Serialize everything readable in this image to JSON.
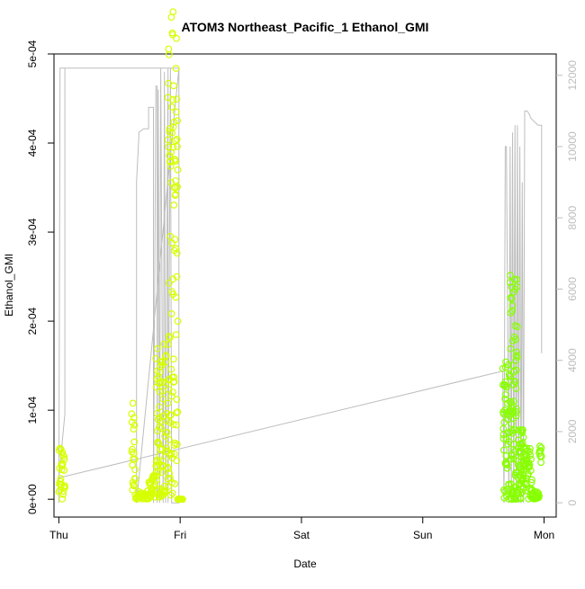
{
  "chart_data": {
    "type": "scatter",
    "title": "ATOM3 Northeast_Pacific_1 Ethanol_GMI",
    "xlabel": "Date",
    "ylabel": "Ethanol_GMI",
    "x_ticks": [
      "Thu",
      "Fri",
      "Sat",
      "Sun",
      "Mon"
    ],
    "x_range_days": [
      -0.04,
      4.1
    ],
    "y_left": {
      "range": [
        -2e-05,
        0.0005
      ],
      "ticks": [
        0,
        0.0001,
        0.0002,
        0.0003,
        0.0004,
        0.0005
      ],
      "tick_labels": [
        "0e+00",
        "1e-04",
        "2e-04",
        "3e-04",
        "4e-04",
        "5e-04"
      ]
    },
    "y_right": {
      "range": [
        -400,
        12600
      ],
      "ticks": [
        0,
        2000,
        4000,
        6000,
        8000,
        10000,
        12000
      ],
      "tick_labels": [
        "0",
        "2000",
        "4000",
        "6000",
        "8000",
        "10000",
        "12000"
      ],
      "color": "#bdbdbd"
    },
    "grid": false,
    "legend": "none",
    "colors": {
      "points_early": "#d6ff00",
      "points_late": "#88ff00",
      "altitude_line": "#bdbdbd",
      "axis": "#000000"
    },
    "series": [
      {
        "kind": "points",
        "axis": "left",
        "color": "#d6ff00",
        "bursts": [
          {
            "x_start": 0.0,
            "x_end": 0.05,
            "y_max": 6e-05,
            "y_min": 0.0,
            "n": 26,
            "seed": 3
          },
          {
            "x_start": 0.6,
            "x_end": 0.63,
            "y_max": 0.00011,
            "y_min": 1e-05,
            "n": 20,
            "seed": 5
          },
          {
            "x_start": 0.63,
            "x_end": 0.74,
            "y_max": 1e-05,
            "y_min": 0.0,
            "n": 24,
            "seed": 7
          },
          {
            "x_start": 0.74,
            "x_end": 0.8,
            "y_max": 3e-05,
            "y_min": 0.0,
            "n": 22,
            "seed": 9
          },
          {
            "x_start": 0.8,
            "x_end": 0.84,
            "y_max": 0.00018,
            "y_min": 0.0,
            "n": 36,
            "seed": 11
          },
          {
            "x_start": 0.84,
            "x_end": 0.9,
            "y_max": 0.00018,
            "y_min": 0.0,
            "n": 40,
            "seed": 13
          },
          {
            "x_start": 0.9,
            "x_end": 0.98,
            "y_max": 0.00045,
            "y_min": 0.0,
            "n": 70,
            "seed": 17
          },
          {
            "x_start": 0.9,
            "x_end": 0.98,
            "y_max": 0.00055,
            "y_min": 0.00035,
            "n": 30,
            "seed": 19
          },
          {
            "x_start": 0.98,
            "x_end": 1.02,
            "y_max": 0.0,
            "y_min": 0.0,
            "n": 8,
            "seed": 21
          }
        ]
      },
      {
        "kind": "points",
        "axis": "left",
        "color": "#88ff00",
        "bursts": [
          {
            "x_start": 3.66,
            "x_end": 3.72,
            "y_max": 0.00016,
            "y_min": 0.0,
            "n": 50,
            "seed": 23
          },
          {
            "x_start": 3.72,
            "x_end": 3.78,
            "y_max": 0.00026,
            "y_min": 0.0,
            "n": 70,
            "seed": 29
          },
          {
            "x_start": 3.78,
            "x_end": 3.83,
            "y_max": 8e-05,
            "y_min": 0.0,
            "n": 46,
            "seed": 31
          },
          {
            "x_start": 3.83,
            "x_end": 3.9,
            "y_max": 6e-05,
            "y_min": 0.0,
            "n": 40,
            "seed": 37
          },
          {
            "x_start": 3.9,
            "x_end": 3.96,
            "y_max": 1e-05,
            "y_min": 0.0,
            "n": 18,
            "seed": 41
          },
          {
            "x_start": 3.96,
            "x_end": 3.98,
            "y_max": 6e-05,
            "y_min": 4e-05,
            "n": 8,
            "seed": 43
          }
        ]
      },
      {
        "kind": "line",
        "axis": "right",
        "color": "#bdbdbd",
        "x": [
          0.0,
          0.01,
          0.02,
          0.03,
          0.05,
          0.9,
          0.96,
          0.99,
          0.64,
          0.64,
          0.66,
          0.66,
          0.7,
          0.74,
          0.74,
          0.78,
          0.78,
          0.8,
          0.81,
          0.81,
          0.82,
          0.83,
          0.84,
          0.86,
          0.87,
          0.88,
          0.9,
          0.9,
          0.92,
          0.93,
          0.95,
          0.96,
          0.97,
          0.99,
          0.99,
          0.05,
          0.05,
          0.0,
          0.0,
          3.66,
          3.67,
          3.68,
          3.69,
          3.71,
          3.72,
          3.73,
          3.74,
          3.75,
          3.76,
          3.77,
          3.78,
          3.79,
          3.8,
          3.81,
          3.82,
          3.83,
          3.84,
          3.86,
          3.88,
          3.89,
          3.92,
          3.95,
          3.98,
          3.98
        ],
        "y": [
          0,
          12200,
          12200,
          12200,
          12200,
          12200,
          12200,
          12200,
          0,
          9000,
          10300,
          10400,
          10500,
          10500,
          11100,
          11100,
          0,
          11700,
          11700,
          0,
          11600,
          0,
          12200,
          0,
          12100,
          0,
          12200,
          0,
          12200,
          0,
          0,
          0,
          0,
          0,
          12200,
          12200,
          2500,
          700,
          700,
          3700,
          0,
          10000,
          10000,
          0,
          10000,
          0,
          10400,
          0,
          10600,
          0,
          10600,
          0,
          10000,
          0,
          9000,
          0,
          11000,
          11000,
          10900,
          10800,
          10700,
          10600,
          10600,
          4200
        ]
      }
    ]
  }
}
